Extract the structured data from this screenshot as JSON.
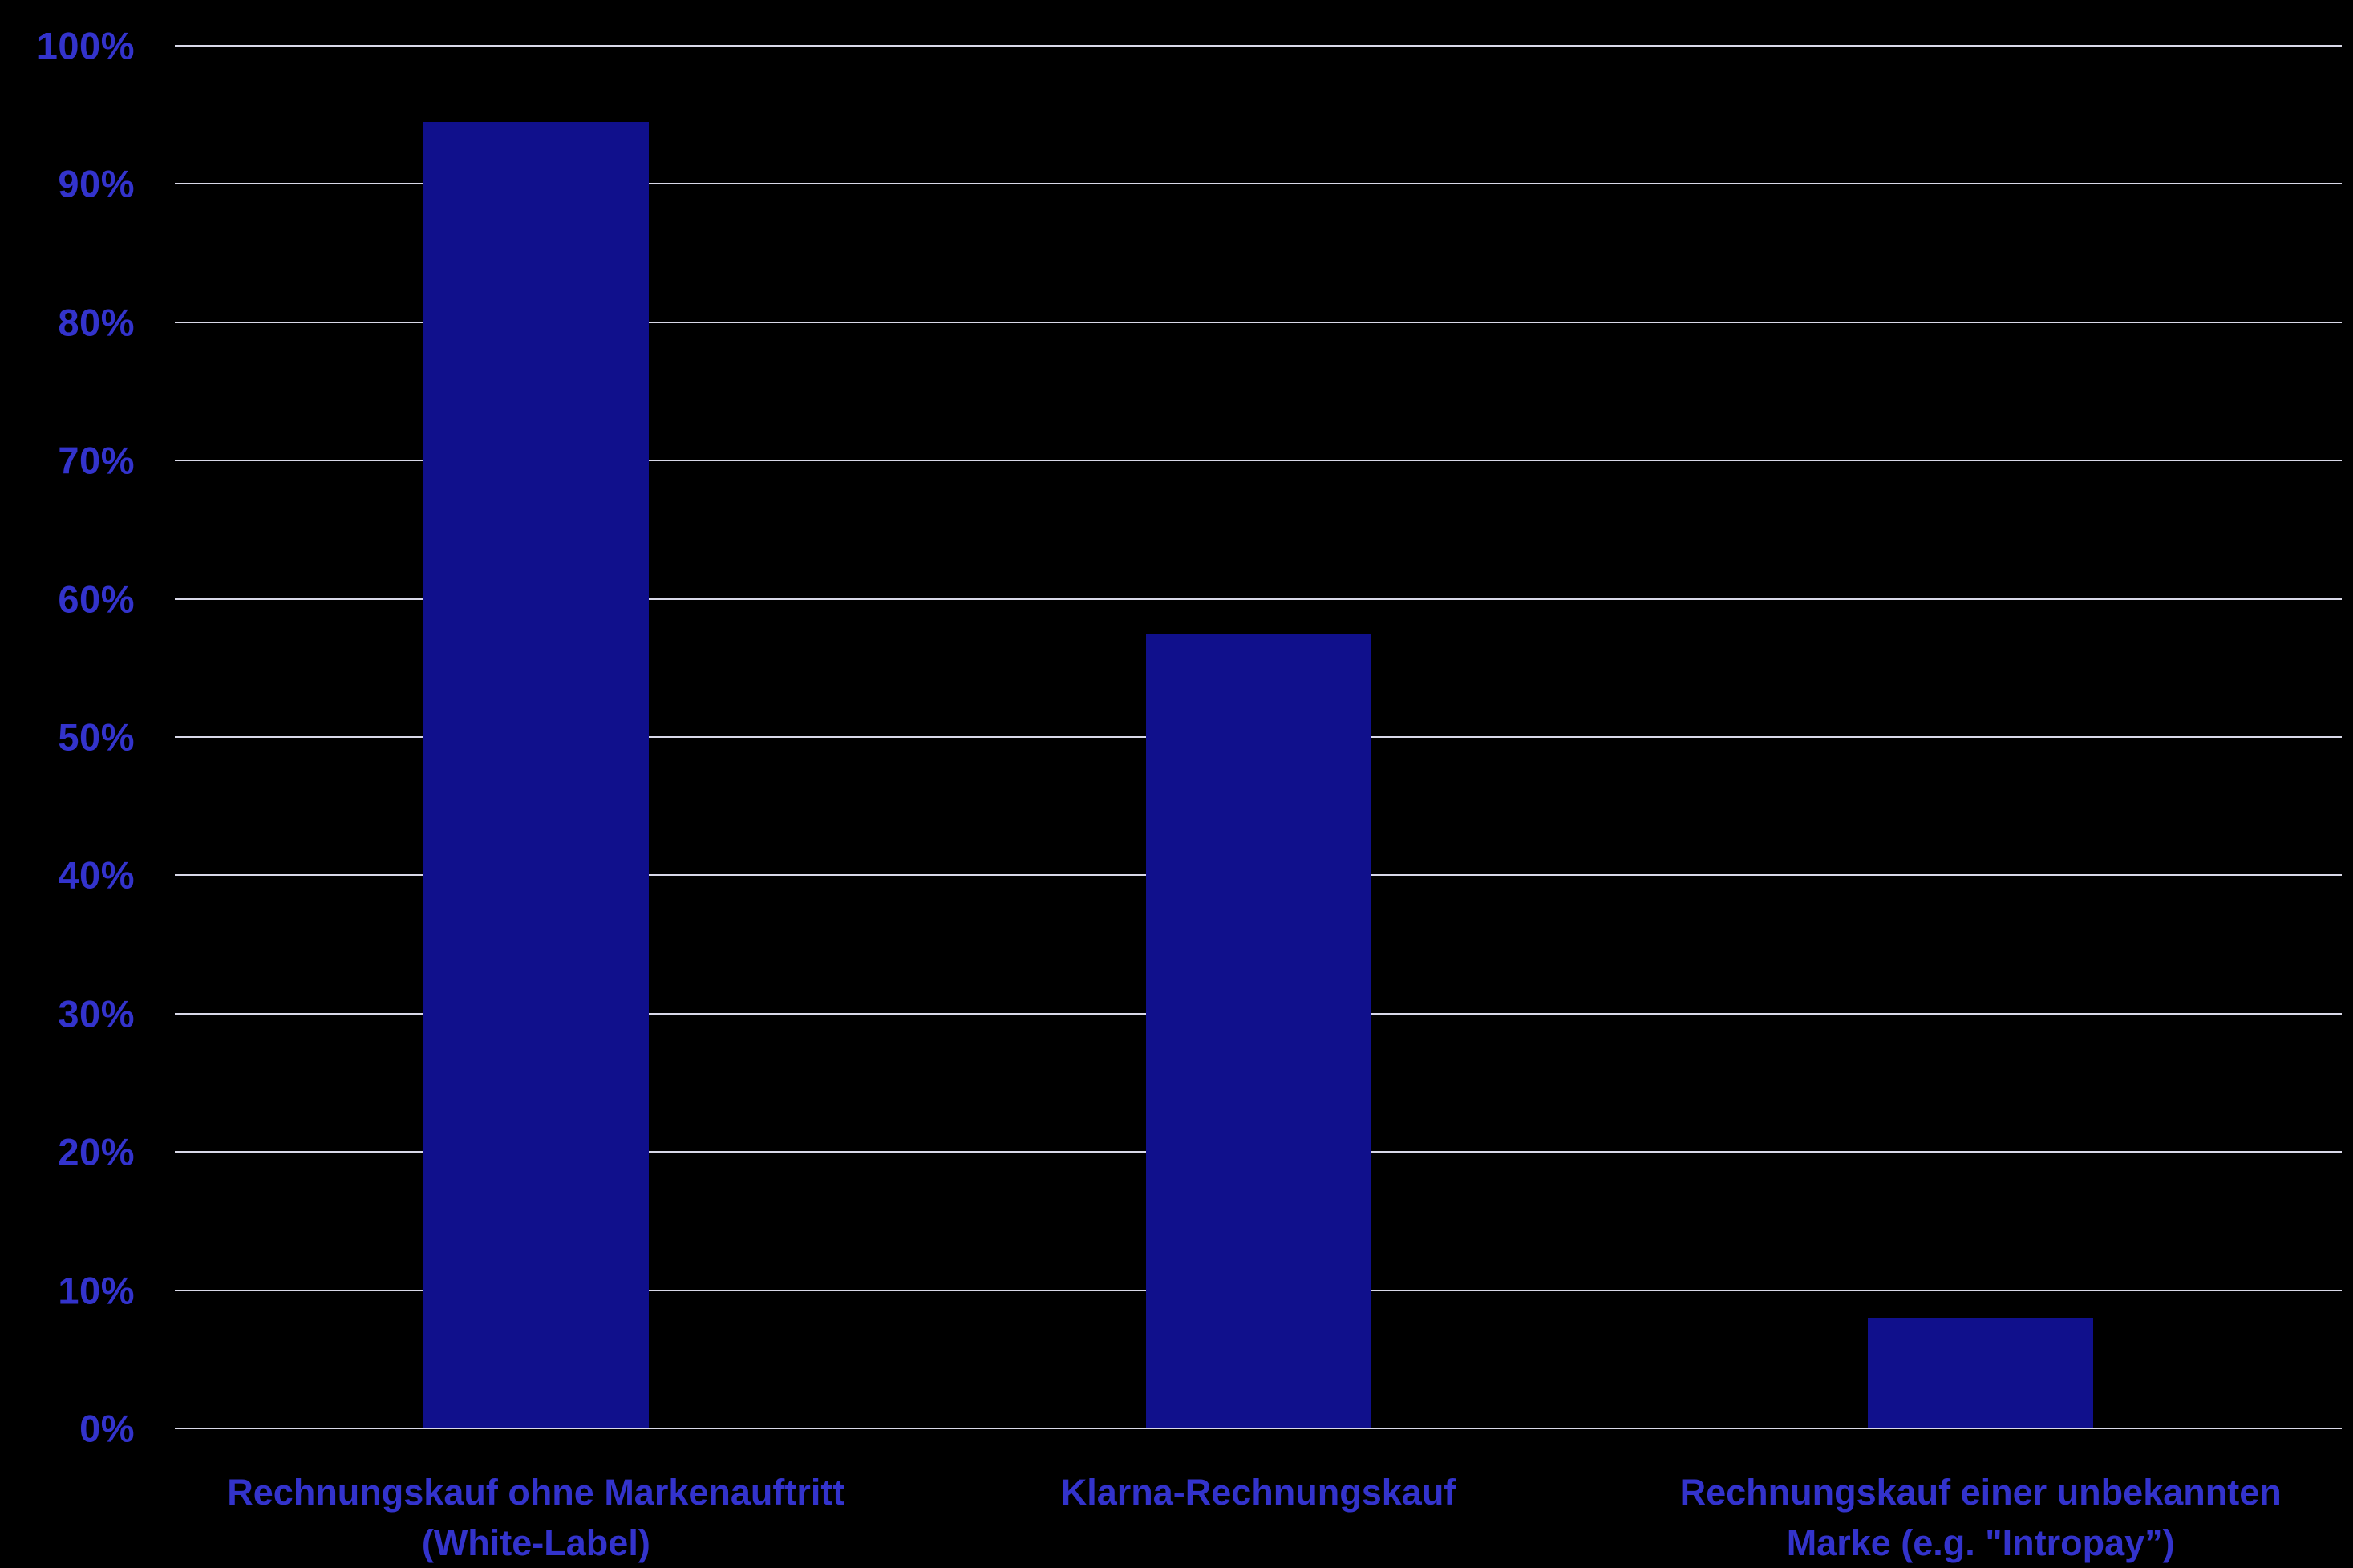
{
  "chart_data": {
    "type": "bar",
    "title": "",
    "xlabel": "",
    "ylabel": "",
    "categories": [
      "Rechnungskauf ohne Markenauftritt (White-Label)",
      "Klarna-Rechnungskauf",
      "Rechnungskauf einer unbekannten Marke (e.g. \"Intropay”)"
    ],
    "values": [
      94.5,
      57.5,
      8
    ],
    "ylim": [
      0,
      100
    ],
    "y_ticks": [
      {
        "v": 0,
        "label": "0%"
      },
      {
        "v": 10,
        "label": "10%"
      },
      {
        "v": 20,
        "label": "20%"
      },
      {
        "v": 30,
        "label": "30%"
      },
      {
        "v": 40,
        "label": "40%"
      },
      {
        "v": 50,
        "label": "50%"
      },
      {
        "v": 60,
        "label": "60%"
      },
      {
        "v": 70,
        "label": "70%"
      },
      {
        "v": 80,
        "label": "80%"
      },
      {
        "v": 90,
        "label": "90%"
      },
      {
        "v": 100,
        "label": "100%"
      }
    ],
    "grid": true,
    "legend": false,
    "colors": {
      "background": "#000000",
      "bar": "#10108C",
      "label": "#3333CC",
      "gridline": "#D9D9E8"
    }
  }
}
